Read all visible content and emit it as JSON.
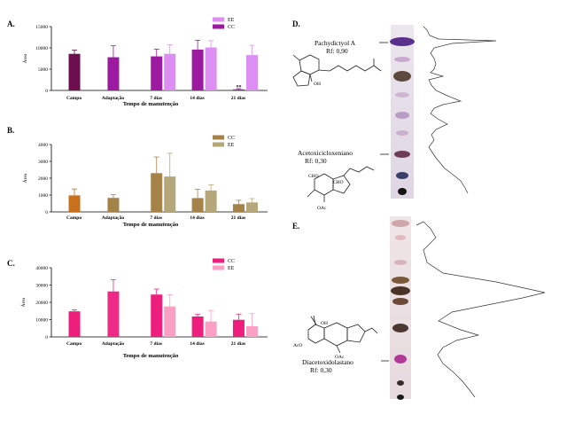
{
  "panels": {
    "a": "A.",
    "b": "B.",
    "c": "C.",
    "d": "D.",
    "e": "E."
  },
  "chart_data": [
    {
      "type": "bar",
      "panel": "A.",
      "categories": [
        "Campo",
        "Adaptação",
        "7 dias",
        "14 dias",
        "21 dias"
      ],
      "series": [
        {
          "name": "CC",
          "values": [
            8600,
            7800,
            8000,
            9600,
            250
          ],
          "errors": [
            900,
            2700,
            1700,
            2200,
            180
          ],
          "colors": [
            "#6d0f4f",
            "#9b1aa0",
            "#9b1aa0",
            "#9b1aa0",
            "#9b1aa0"
          ]
        },
        {
          "name": "EE",
          "values": [
            null,
            null,
            8600,
            10100,
            8300
          ],
          "errors": [
            null,
            null,
            2100,
            1600,
            2300
          ],
          "color": "#dd8ef2"
        }
      ],
      "ylim": [
        0,
        15000
      ],
      "yticks": [
        "0",
        "5000",
        "10000",
        "15000"
      ],
      "ylabel": "Área",
      "xlabel": "Tempo de manutenção",
      "annotation": "**",
      "legend_order": [
        "EE",
        "CC"
      ]
    },
    {
      "type": "bar",
      "panel": "B.",
      "categories": [
        "Campo",
        "Adaptação",
        "7 dias",
        "14 dias",
        "21 dias"
      ],
      "series": [
        {
          "name": "CC",
          "values": [
            980,
            830,
            2300,
            820,
            460
          ],
          "errors": [
            380,
            190,
            960,
            520,
            230
          ],
          "colors": [
            "#c8701c",
            "#a58248",
            "#a58248",
            "#a58248",
            "#a58248"
          ]
        },
        {
          "name": "EE",
          "values": [
            null,
            null,
            2100,
            1270,
            560
          ],
          "errors": [
            null,
            null,
            1380,
            330,
            230
          ],
          "color": "#b5a77a"
        }
      ],
      "ylim": [
        0,
        4000
      ],
      "yticks": [
        "0",
        "1000",
        "2000",
        "3000",
        "4000"
      ],
      "ylabel": "Área",
      "xlabel": "Tempo de manutenção",
      "legend_order": [
        "CC",
        "EE"
      ]
    },
    {
      "type": "bar",
      "panel": "C.",
      "categories": [
        "Campo",
        "Adaptação",
        "7 dias",
        "14 dias",
        "21 dias"
      ],
      "series": [
        {
          "name": "CC",
          "values": [
            14800,
            26300,
            24500,
            11800,
            9900
          ],
          "errors": [
            900,
            6800,
            3200,
            1200,
            3300
          ],
          "colors": [
            "#ee1f7c",
            "#ee2a86",
            "#ee1f7c",
            "#ee1f7c",
            "#ee1f7c"
          ]
        },
        {
          "name": "EE",
          "values": [
            null,
            null,
            17600,
            8900,
            6200
          ],
          "errors": [
            null,
            null,
            6800,
            6400,
            7300
          ],
          "color": "#fb9fc4"
        }
      ],
      "ylim": [
        0,
        40000
      ],
      "yticks": [
        "0",
        "10000",
        "20000",
        "30000",
        "40000"
      ],
      "ylabel": "Área",
      "xlabel": "Tempo de manutenção",
      "legend_order": [
        "CC",
        "EE"
      ]
    }
  ],
  "tlc": {
    "d_label_1": "Pachydictyol  A",
    "d_rf_1": "Rf: 0,90",
    "d_label_2": "Acetoxicicloxeniano",
    "d_rf_2": "Rf: 0,30",
    "d_cho_1": "CHO",
    "d_cho_2": "CHO",
    "d_oac": "OAc",
    "d_oh": "OH",
    "e_label": "Diacetoxidolastano",
    "e_rf": "Rf: 0,30",
    "e_oh": "OH",
    "e_aco": "AcO",
    "e_oac": "OAc"
  }
}
